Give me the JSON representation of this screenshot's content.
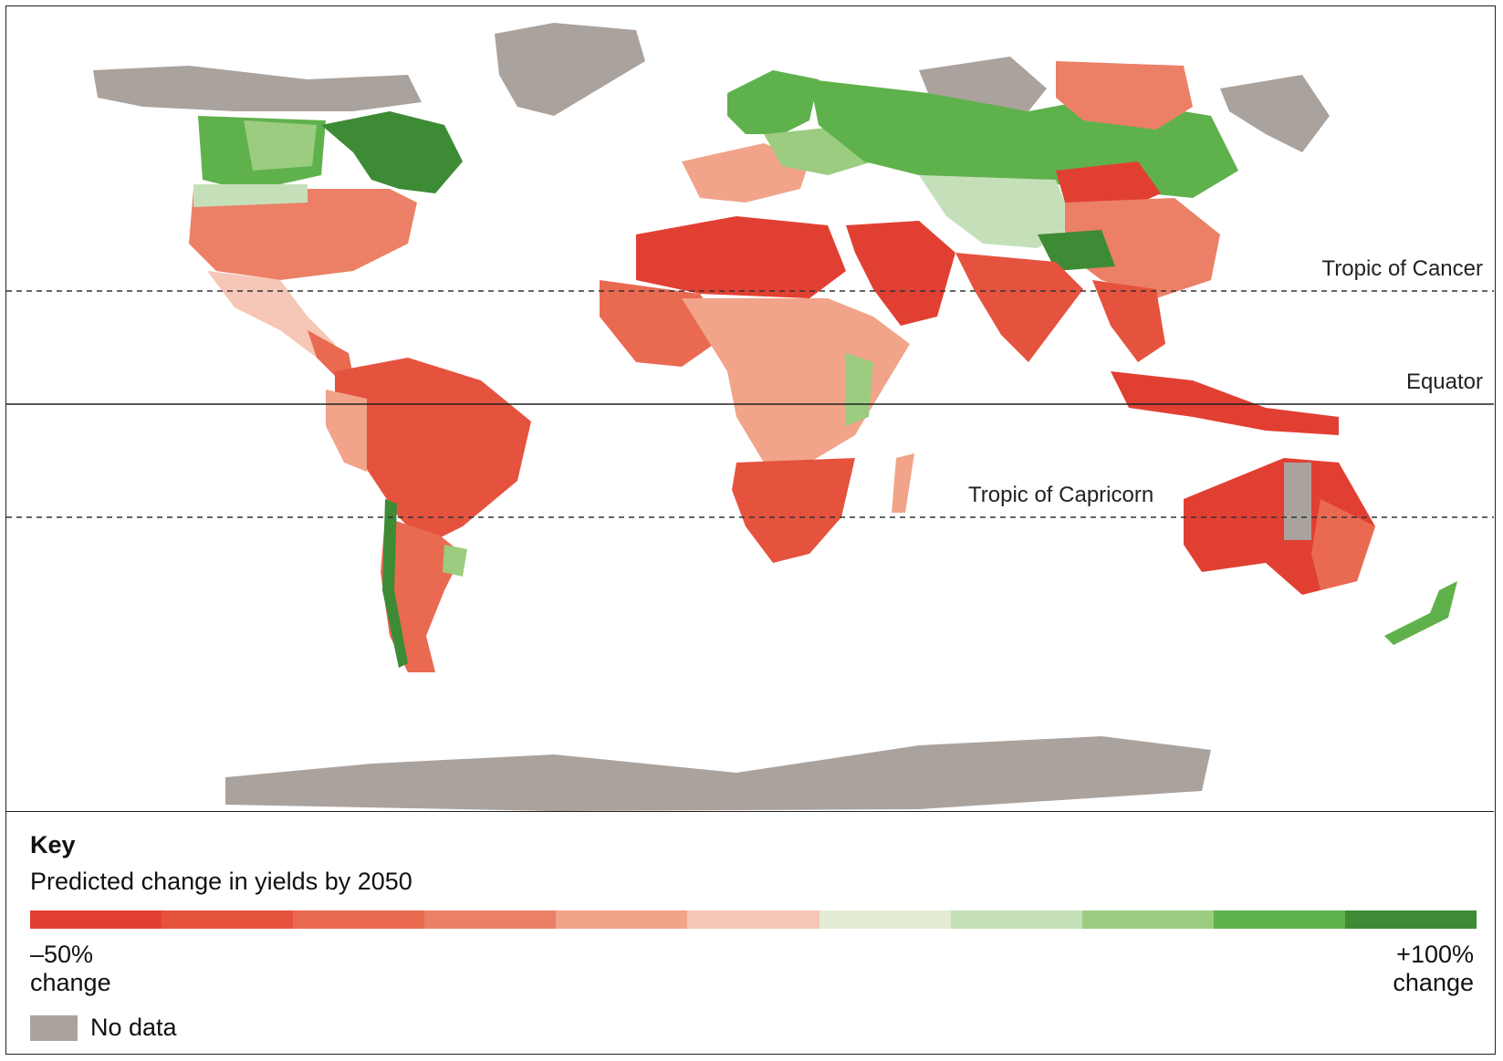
{
  "map": {
    "reference_lines": {
      "tropic_of_cancer": "Tropic of Cancer",
      "equator": "Equator",
      "tropic_of_capricorn": "Tropic of Capricorn"
    }
  },
  "key": {
    "title": "Key",
    "subtitle": "Predicted change in yields by 2050",
    "low_end": {
      "line1": "–50%",
      "line2": "change"
    },
    "high_end": {
      "line1": "+100%",
      "line2": "change"
    },
    "no_data_label": "No data",
    "scale_colors": [
      "#e23f33",
      "#e5533e",
      "#e96a51",
      "#ec8066",
      "#f1a48a",
      "#f6c6b6",
      "#e5ecd4",
      "#c5e0b9",
      "#9ccc80",
      "#5fb14c",
      "#3d8b35"
    ],
    "no_data_color": "#aaa29d"
  }
}
